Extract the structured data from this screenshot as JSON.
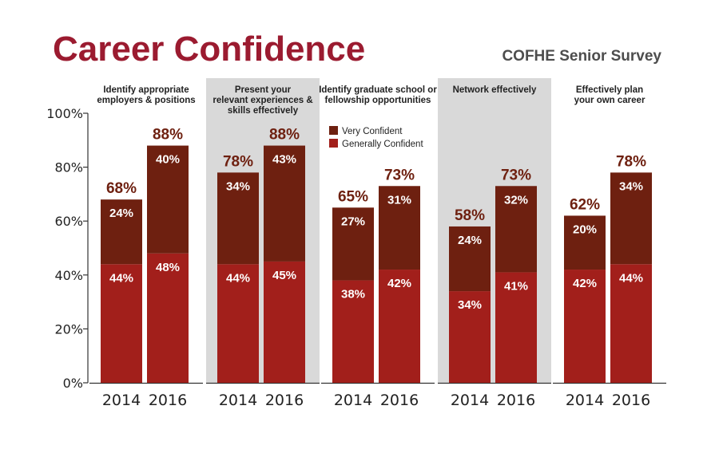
{
  "header": {
    "title": "Career Confidence",
    "subtitle": "COFHE Senior Survey"
  },
  "colors": {
    "title": "#9b1b30",
    "very_confident": "#6e2010",
    "generally_confident": "#a21f1b",
    "total_label": "#6e2010",
    "shade": "#d9d9d9",
    "axis": "#333333"
  },
  "chart_data": {
    "type": "bar",
    "stacked": true,
    "ylim": [
      0,
      100
    ],
    "yticks": [
      "0%",
      "20%",
      "40%",
      "60%",
      "80%",
      "100%"
    ],
    "ytick_values": [
      0,
      20,
      40,
      60,
      80,
      100
    ],
    "legend": [
      {
        "name": "Very Confident",
        "color": "#6e2010"
      },
      {
        "name": "Generally Confident",
        "color": "#a21f1b"
      }
    ],
    "groups": [
      {
        "title_lines": [
          "Identify appropriate",
          "employers & positions"
        ],
        "shaded": false,
        "bars": [
          {
            "year": "2014",
            "generally": 44,
            "very": 24,
            "total": 68,
            "generally_label": "44%",
            "very_label": "24%",
            "total_label": "68%"
          },
          {
            "year": "2016",
            "generally": 48,
            "very": 40,
            "total": 88,
            "generally_label": "48%",
            "very_label": "40%",
            "total_label": "88%"
          }
        ]
      },
      {
        "title_lines": [
          "Present your",
          "relevant experiences &",
          "skills effectively"
        ],
        "shaded": true,
        "bars": [
          {
            "year": "2014",
            "generally": 44,
            "very": 34,
            "total": 78,
            "generally_label": "44%",
            "very_label": "34%",
            "total_label": "78%"
          },
          {
            "year": "2016",
            "generally": 45,
            "very": 43,
            "total": 88,
            "generally_label": "45%",
            "very_label": "43%",
            "total_label": "88%"
          }
        ]
      },
      {
        "title_lines": [
          "Identify graduate school or",
          "fellowship opportunities"
        ],
        "shaded": false,
        "bars": [
          {
            "year": "2014",
            "generally": 38,
            "very": 27,
            "total": 65,
            "generally_label": "38%",
            "very_label": "27%",
            "total_label": "65%"
          },
          {
            "year": "2016",
            "generally": 42,
            "very": 31,
            "total": 73,
            "generally_label": "42%",
            "very_label": "31%",
            "total_label": "73%"
          }
        ]
      },
      {
        "title_lines": [
          "Network effectively"
        ],
        "shaded": true,
        "bars": [
          {
            "year": "2014",
            "generally": 34,
            "very": 24,
            "total": 58,
            "generally_label": "34%",
            "very_label": "24%",
            "total_label": "58%"
          },
          {
            "year": "2016",
            "generally": 41,
            "very": 32,
            "total": 73,
            "generally_label": "41%",
            "very_label": "32%",
            "total_label": "73%"
          }
        ]
      },
      {
        "title_lines": [
          "Effectively plan",
          "your own career"
        ],
        "shaded": false,
        "bars": [
          {
            "year": "2014",
            "generally": 42,
            "very": 20,
            "total": 62,
            "generally_label": "42%",
            "very_label": "20%",
            "total_label": "62%"
          },
          {
            "year": "2016",
            "generally": 44,
            "very": 34,
            "total": 78,
            "generally_label": "44%",
            "very_label": "34%",
            "total_label": "78%"
          }
        ]
      }
    ]
  }
}
